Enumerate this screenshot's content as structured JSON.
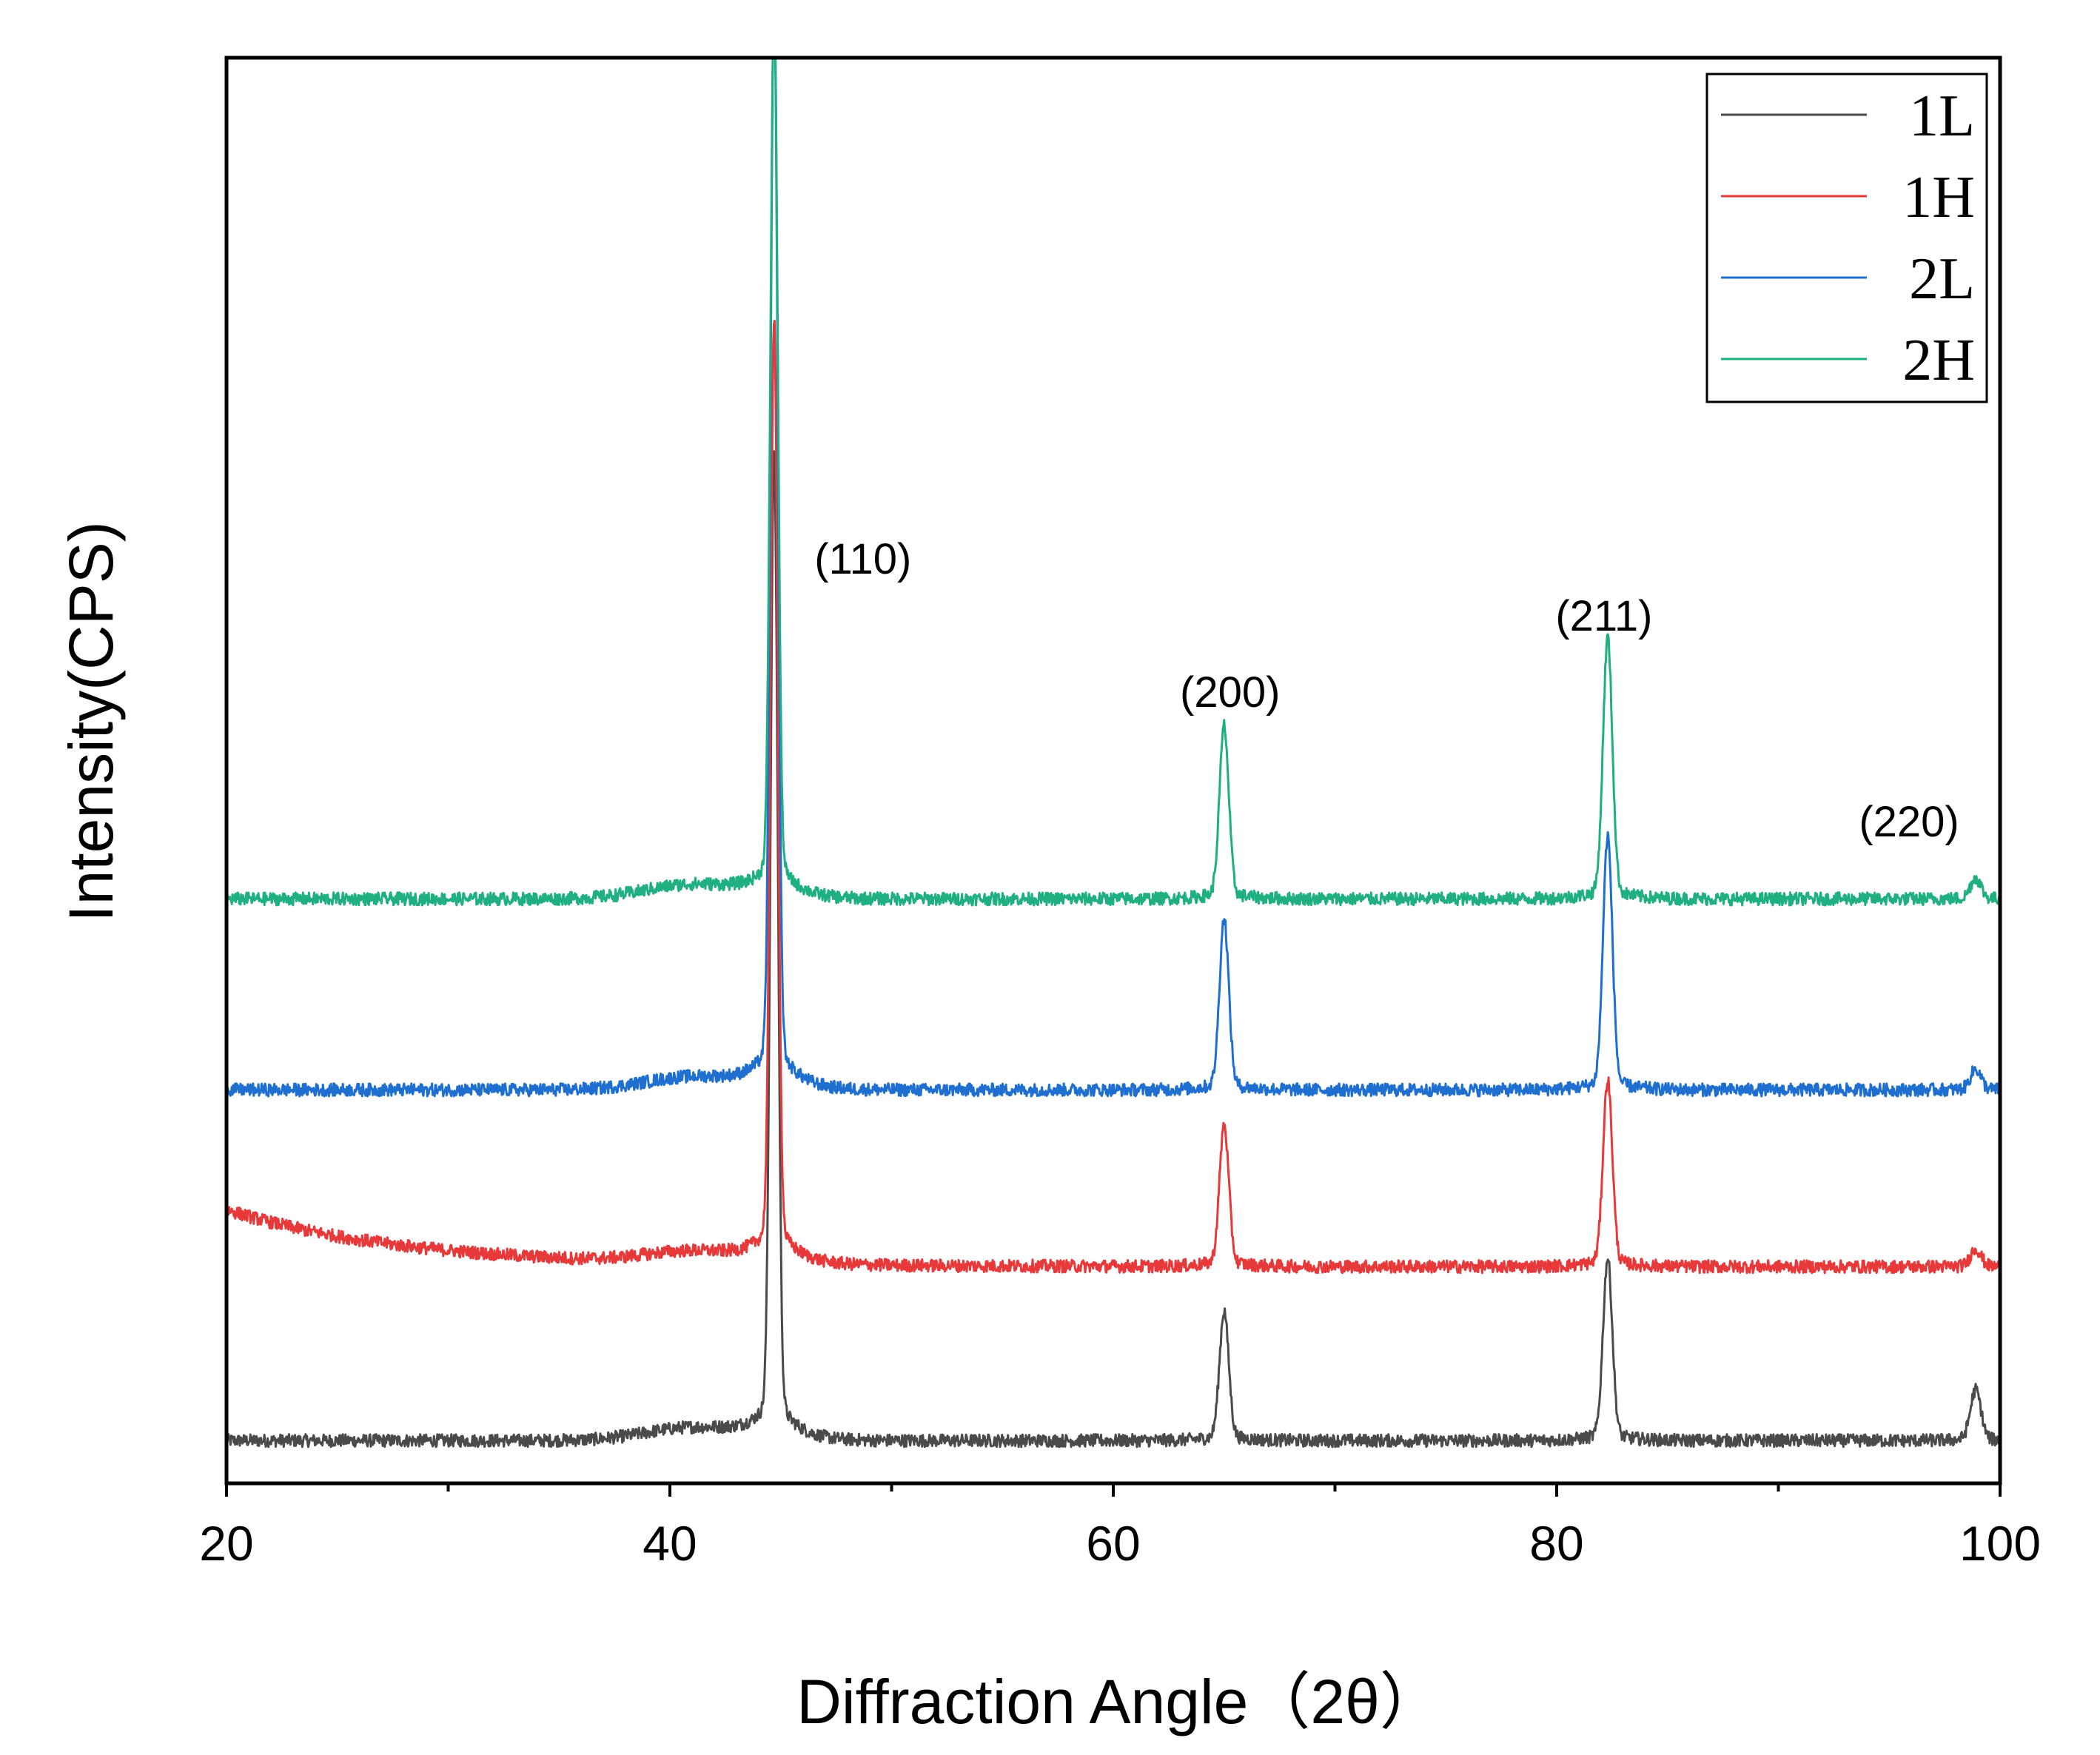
{
  "chart_data": {
    "type": "line",
    "title": "",
    "xlabel": "Diffraction Angle（2θ）",
    "ylabel": "Intensity(CPS)",
    "xlim": [
      20,
      100
    ],
    "ylim": [
      0,
      100
    ],
    "x_ticks": [
      20,
      40,
      60,
      80,
      100
    ],
    "x_tick_labels": [
      "20",
      "40",
      "60",
      "80",
      "100"
    ],
    "y_ticks_labeled": false,
    "grid": false,
    "legend_position": "top-right",
    "peaks": [
      {
        "label": "(110)",
        "x": 44.7
      },
      {
        "label": "(200)",
        "x": 65.0
      },
      {
        "label": "(211)",
        "x": 82.3
      },
      {
        "label": "(220)",
        "x": 98.9
      }
    ],
    "series": [
      {
        "name": "1L",
        "color": "#4a4a4a",
        "baseline": 3.0,
        "baseline_bump_40": 0.9,
        "low_angle_rise": 0,
        "peaks": [
          {
            "x": 44.7,
            "h": 66
          },
          {
            "x": 65.0,
            "h": 8.7
          },
          {
            "x": 82.3,
            "h": 12.2
          },
          {
            "x": 98.9,
            "h": 3.4
          }
        ]
      },
      {
        "name": "1H",
        "color": "#e8393a",
        "baseline": 15.2,
        "baseline_bump_40": 0.8,
        "low_angle_rise": 4.0,
        "peaks": [
          {
            "x": 44.7,
            "h": 63
          },
          {
            "x": 65.0,
            "h": 9.5
          },
          {
            "x": 82.3,
            "h": 12.5
          },
          {
            "x": 98.9,
            "h": 1.2
          }
        ]
      },
      {
        "name": "2L",
        "color": "#1f6fd1",
        "baseline": 27.6,
        "baseline_bump_40": 0.9,
        "low_angle_rise": 0,
        "peaks": [
          {
            "x": 44.7,
            "h": 73
          },
          {
            "x": 65.0,
            "h": 11.5
          },
          {
            "x": 82.3,
            "h": 17.0
          },
          {
            "x": 98.9,
            "h": 1.4
          }
        ]
      },
      {
        "name": "2H",
        "color": "#1faf80",
        "baseline": 41.0,
        "baseline_bump_40": 1.0,
        "low_angle_rise": 0,
        "peaks": [
          {
            "x": 44.7,
            "h": 60
          },
          {
            "x": 65.0,
            "h": 11.6
          },
          {
            "x": 82.3,
            "h": 17.5
          },
          {
            "x": 98.9,
            "h": 1.4
          }
        ]
      }
    ]
  }
}
